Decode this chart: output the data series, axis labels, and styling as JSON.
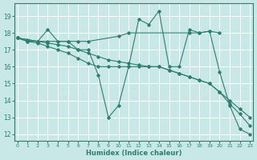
{
  "xlabel": "Humidex (Indice chaleur)",
  "background_color": "#c8e8e8",
  "grid_color": "#ffffff",
  "line_color": "#2e7d6e",
  "xlim_min": -0.3,
  "xlim_max": 23.3,
  "ylim_min": 11.6,
  "ylim_max": 19.75,
  "yticks": [
    12,
    13,
    14,
    15,
    16,
    17,
    18,
    19
  ],
  "xticks": [
    0,
    1,
    2,
    3,
    4,
    5,
    6,
    7,
    8,
    9,
    10,
    11,
    12,
    13,
    14,
    15,
    16,
    17,
    18,
    19,
    20,
    21,
    22,
    23
  ],
  "curve1_x": [
    0,
    1,
    2,
    3,
    4,
    5,
    6,
    7,
    8,
    9,
    10,
    11,
    12,
    13,
    14,
    15,
    16,
    17,
    18,
    19,
    20,
    21,
    22,
    23
  ],
  "curve1_y": [
    17.7,
    17.5,
    17.5,
    18.2,
    17.5,
    17.5,
    17.0,
    17.0,
    15.5,
    13.0,
    13.7,
    16.0,
    18.8,
    18.5,
    19.3,
    16.0,
    16.0,
    18.2,
    18.0,
    18.1,
    15.7,
    13.7,
    12.3,
    12.0
  ],
  "curve2_x": [
    0,
    2,
    3,
    5,
    6,
    7,
    10,
    11,
    17,
    18,
    19,
    20
  ],
  "curve2_y": [
    17.7,
    17.5,
    17.5,
    17.5,
    17.5,
    17.5,
    17.8,
    18.0,
    18.0,
    18.0,
    18.1,
    18.0
  ],
  "curve3_x": [
    0,
    1,
    2,
    3,
    4,
    5,
    6,
    7,
    8,
    9,
    10,
    11,
    12,
    13,
    14,
    15,
    16,
    17,
    18,
    19,
    20,
    21,
    22,
    23
  ],
  "curve3_y": [
    17.7,
    17.6,
    17.5,
    17.4,
    17.3,
    17.2,
    17.0,
    16.8,
    16.6,
    16.4,
    16.3,
    16.2,
    16.1,
    16.0,
    16.0,
    15.8,
    15.6,
    15.4,
    15.2,
    15.0,
    14.5,
    13.8,
    13.2,
    12.5
  ],
  "curve4_x": [
    0,
    1,
    2,
    3,
    4,
    5,
    6,
    7,
    8,
    9,
    10,
    11,
    12,
    13,
    14,
    15,
    16,
    17,
    18,
    19,
    20,
    21,
    22,
    23
  ],
  "curve4_y": [
    17.7,
    17.5,
    17.4,
    17.2,
    17.0,
    16.8,
    16.5,
    16.2,
    16.0,
    16.0,
    16.0,
    16.0,
    16.0,
    16.0,
    16.0,
    15.8,
    15.6,
    15.4,
    15.2,
    15.0,
    14.5,
    14.0,
    13.5,
    13.0
  ]
}
